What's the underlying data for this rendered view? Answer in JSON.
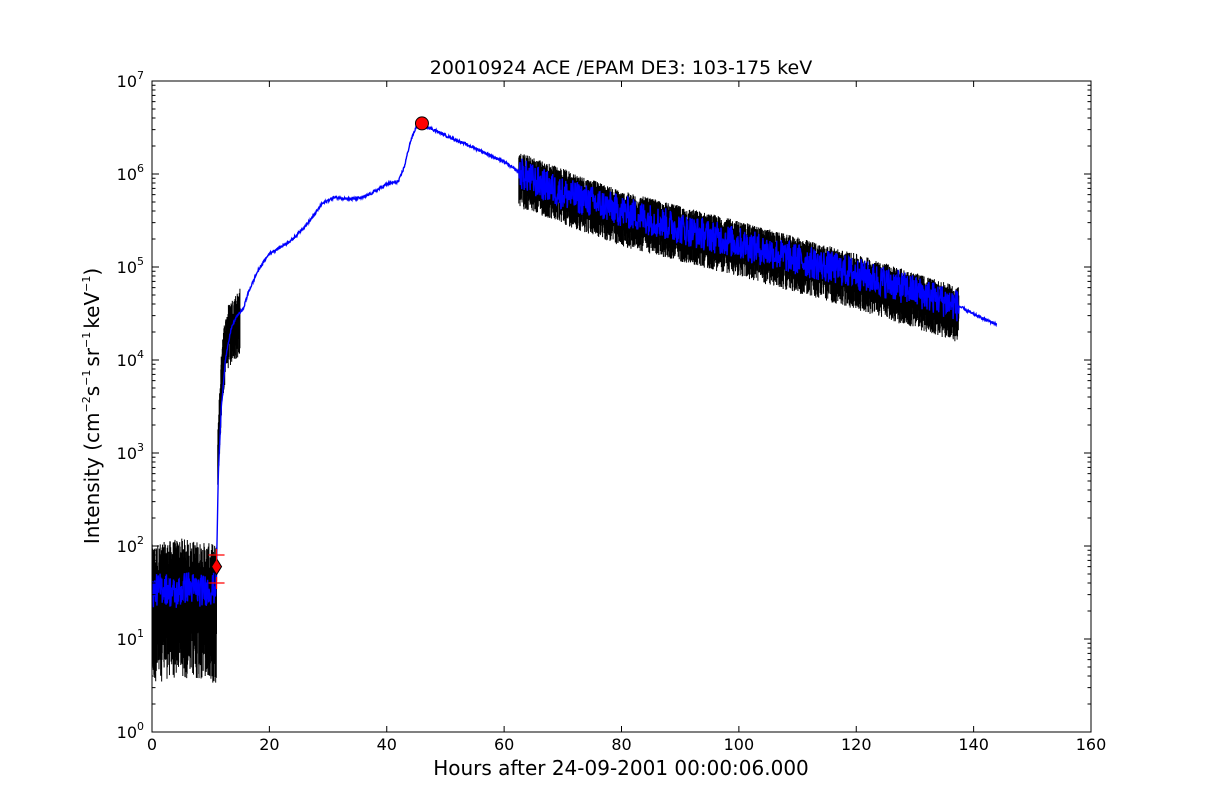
{
  "chart_data": {
    "type": "line",
    "title": "20010924 ACE /EPAM DE3: 103-175 keV",
    "xlabel": "Hours after 24-09-2001 00:00:06.000",
    "ylabel": {
      "prefix": "Intensity (cm",
      "sup1": "−2",
      "mid1": "s",
      "sup2": "−1",
      "mid2": "sr",
      "sup3": "−1",
      "mid3": "keV",
      "sup4": "−1",
      "suffix": ")"
    },
    "xlim": [
      0,
      160
    ],
    "ylim": [
      1,
      10000000
    ],
    "yscale": "log",
    "x_ticks": [
      0,
      20,
      40,
      60,
      80,
      100,
      120,
      140,
      160
    ],
    "x_tick_labels": [
      "0",
      "20",
      "40",
      "60",
      "80",
      "100",
      "120",
      "140",
      "160"
    ],
    "y_ticks": [
      1,
      10,
      100,
      1000,
      10000,
      100000,
      1000000,
      10000000
    ],
    "y_tick_labels": [
      {
        "base": "10",
        "exp": "0"
      },
      {
        "base": "10",
        "exp": "1"
      },
      {
        "base": "10",
        "exp": "2"
      },
      {
        "base": "10",
        "exp": "3"
      },
      {
        "base": "10",
        "exp": "4"
      },
      {
        "base": "10",
        "exp": "5"
      },
      {
        "base": "10",
        "exp": "6"
      },
      {
        "base": "10",
        "exp": "7"
      }
    ],
    "grid": false,
    "legend": "none",
    "series": [
      {
        "color": "#000000",
        "style": "noisy_raw",
        "segments": [
          {
            "x": [
              0,
              11
            ],
            "center": [
              [
                0,
                30
              ],
              [
                5,
                35
              ],
              [
                10.9,
                30
              ]
            ],
            "spread_low": 0.8,
            "spread_high": 0.45
          },
          {
            "x": [
              11.2,
              15
            ],
            "center": [
              [
                11.2,
                1000
              ],
              [
                12,
                10000
              ],
              [
                13,
                20000
              ],
              [
                15,
                30000
              ]
            ],
            "spread_low": 0.35,
            "spread_high": 0.25
          },
          {
            "x": [
              62.5,
              137.5
            ],
            "center": [
              [
                62.5,
                1000000
              ],
              [
                80,
                380000
              ],
              [
                100,
                180000
              ],
              [
                120,
                80000
              ],
              [
                137.5,
                35000
              ]
            ],
            "spread_low": 0.3,
            "spread_high": 0.2
          }
        ]
      },
      {
        "color": "#0000ff",
        "style": "smoothed",
        "points": [
          [
            0,
            32
          ],
          [
            2,
            36
          ],
          [
            4,
            30
          ],
          [
            6,
            37
          ],
          [
            8,
            33
          ],
          [
            10.8,
            35
          ],
          [
            11.0,
            60
          ],
          [
            11.3,
            600
          ],
          [
            11.8,
            3000
          ],
          [
            12.5,
            10000
          ],
          [
            13.5,
            22000
          ],
          [
            14.5,
            30000
          ],
          [
            15.5,
            35000
          ],
          [
            16.5,
            55000
          ],
          [
            18,
            90000
          ],
          [
            20,
            140000
          ],
          [
            22,
            165000
          ],
          [
            24,
            200000
          ],
          [
            27,
            320000
          ],
          [
            29,
            480000
          ],
          [
            31,
            560000
          ],
          [
            34,
            540000
          ],
          [
            36,
            560000
          ],
          [
            38,
            650000
          ],
          [
            40,
            780000
          ],
          [
            42,
            830000
          ],
          [
            43,
            1200000
          ],
          [
            44,
            2200000
          ],
          [
            45,
            3200000
          ],
          [
            46,
            3500000
          ],
          [
            47,
            3200000
          ],
          [
            50,
            2600000
          ],
          [
            55,
            1900000
          ],
          [
            60,
            1350000
          ],
          [
            62.5,
            1050000
          ],
          [
            65,
            850000
          ],
          [
            70,
            620000
          ],
          [
            75,
            500000
          ],
          [
            80,
            400000
          ],
          [
            90,
            260000
          ],
          [
            100,
            180000
          ],
          [
            110,
            120000
          ],
          [
            120,
            85000
          ],
          [
            130,
            55000
          ],
          [
            137.5,
            38000
          ],
          [
            140,
            31000
          ],
          [
            144,
            24000
          ]
        ],
        "jitter_region": [
          [
            0,
            11
          ],
          [
            62.5,
            137.5
          ]
        ]
      }
    ],
    "markers": [
      {
        "shape": "circle",
        "x": 46,
        "y": 3500000,
        "color": "#ff0000"
      },
      {
        "shape": "diamond",
        "x": 11,
        "y": 60,
        "color": "#ff0000"
      },
      {
        "shape": "plus",
        "x": 11,
        "y": 80,
        "color": "#ff0000"
      },
      {
        "shape": "plus",
        "x": 11,
        "y": 40,
        "color": "#ff0000"
      }
    ]
  }
}
